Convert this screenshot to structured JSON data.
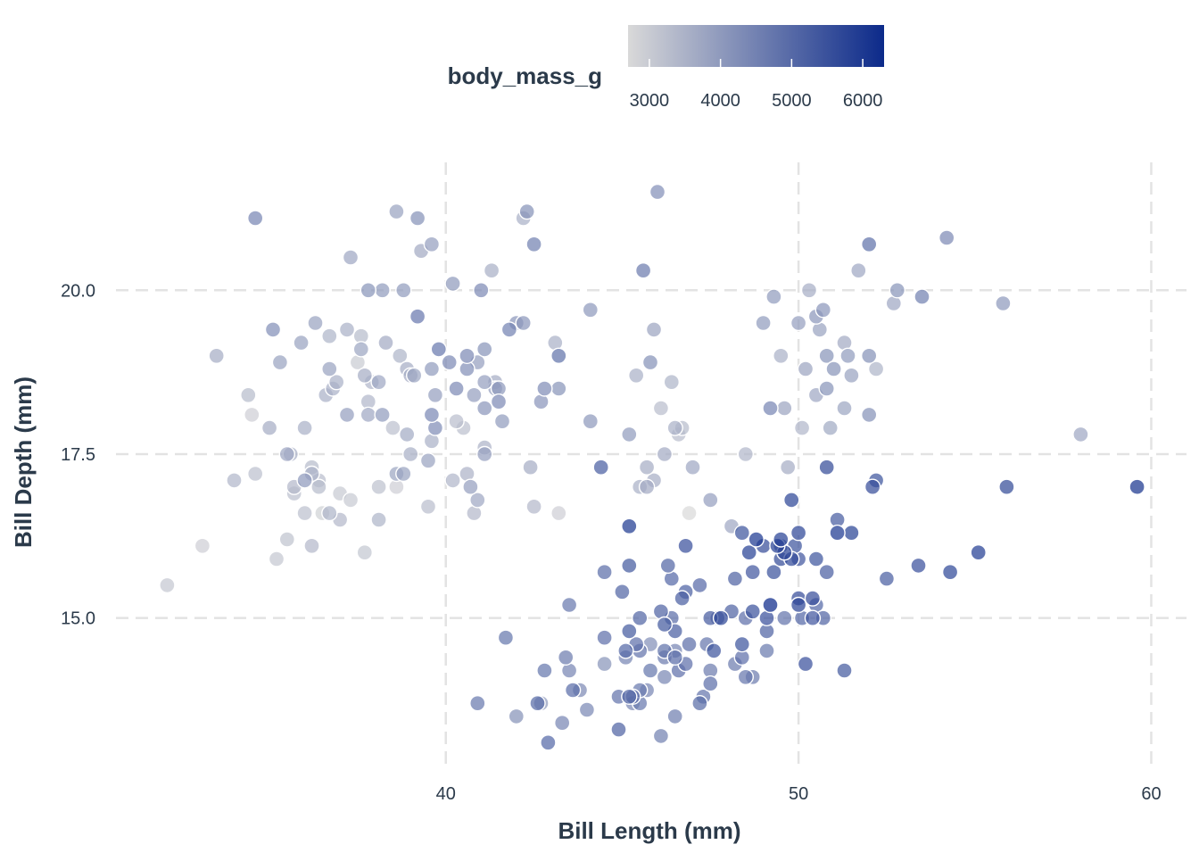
{
  "chart_data": {
    "type": "scatter",
    "xlabel": "Bill Length (mm)",
    "ylabel": "Bill Depth (mm)",
    "xlim": [
      30.8,
      61.0
    ],
    "ylim": [
      12.75,
      21.95
    ],
    "x_ticks": [
      40,
      50,
      60
    ],
    "x_tick_labels": [
      "40",
      "50",
      "60"
    ],
    "y_ticks": [
      15,
      17.5,
      20
    ],
    "y_tick_labels": [
      "15.0",
      "17.5",
      "20.0"
    ],
    "grid": true,
    "legend": {
      "title": "body_mass_g",
      "placement": "top",
      "type": "colorbar",
      "range": [
        2700,
        6300
      ],
      "ticks": [
        3000,
        4000,
        5000,
        6000
      ],
      "tick_labels": [
        "3000",
        "4000",
        "5000",
        "6000"
      ],
      "color_low": "#d9d9d9",
      "color_high": "#0c2a8a"
    },
    "colors": {
      "low": "#d9d9d9",
      "high": "#0c2a8a",
      "grid": "#e3e3e3",
      "text": "#2b3a4a"
    },
    "points": [
      [
        32.1,
        15.5,
        3050
      ],
      [
        33.1,
        16.1,
        2900
      ],
      [
        33.5,
        19.0,
        3600
      ],
      [
        34.0,
        17.1,
        3400
      ],
      [
        34.4,
        18.4,
        3300
      ],
      [
        34.5,
        18.1,
        2900
      ],
      [
        34.6,
        21.1,
        4400
      ],
      [
        34.6,
        17.2,
        3200
      ],
      [
        35.0,
        17.9,
        3600
      ],
      [
        35.1,
        19.4,
        4200
      ],
      [
        35.2,
        15.9,
        3050
      ],
      [
        35.3,
        18.9,
        3800
      ],
      [
        35.5,
        16.2,
        3150
      ],
      [
        35.5,
        17.5,
        3700
      ],
      [
        35.6,
        17.5,
        3500
      ],
      [
        35.7,
        16.9,
        3200
      ],
      [
        35.7,
        17.0,
        3350
      ],
      [
        35.9,
        19.2,
        3800
      ],
      [
        36.0,
        16.6,
        3200
      ],
      [
        36.0,
        17.1,
        4000
      ],
      [
        36.0,
        17.9,
        3500
      ],
      [
        36.2,
        17.3,
        3300
      ],
      [
        36.2,
        17.2,
        3500
      ],
      [
        36.2,
        16.1,
        3350
      ],
      [
        36.3,
        19.5,
        3800
      ],
      [
        36.4,
        17.0,
        3300
      ],
      [
        36.4,
        17.1,
        3250
      ],
      [
        36.5,
        16.6,
        2850
      ],
      [
        36.6,
        18.4,
        3500
      ],
      [
        36.7,
        19.3,
        3450
      ],
      [
        36.7,
        18.8,
        3800
      ],
      [
        36.7,
        16.6,
        3450
      ],
      [
        36.8,
        18.5,
        3500
      ],
      [
        36.9,
        18.6,
        3500
      ],
      [
        37.0,
        16.9,
        3000
      ],
      [
        37.0,
        16.5,
        3350
      ],
      [
        37.2,
        18.1,
        3900
      ],
      [
        37.2,
        19.4,
        3500
      ],
      [
        37.3,
        20.5,
        3700
      ],
      [
        37.3,
        16.8,
        3000
      ],
      [
        37.5,
        18.9,
        2975
      ],
      [
        37.6,
        19.3,
        3300
      ],
      [
        37.6,
        19.1,
        3750
      ],
      [
        37.7,
        18.7,
        3600
      ],
      [
        37.7,
        16.0,
        3075
      ],
      [
        37.8,
        18.3,
        3400
      ],
      [
        37.8,
        20.0,
        4100
      ],
      [
        37.8,
        18.1,
        3700
      ],
      [
        37.9,
        18.6,
        3400
      ],
      [
        38.1,
        17.0,
        3175
      ],
      [
        38.1,
        18.6,
        3700
      ],
      [
        38.1,
        16.5,
        3450
      ],
      [
        38.2,
        18.1,
        3950
      ],
      [
        38.2,
        20.0,
        3950
      ],
      [
        38.3,
        19.2,
        3650
      ],
      [
        38.5,
        17.9,
        3200
      ],
      [
        38.6,
        21.2,
        3800
      ],
      [
        38.6,
        17.2,
        3750
      ],
      [
        38.6,
        17.0,
        2900
      ],
      [
        38.7,
        19.0,
        3450
      ],
      [
        38.8,
        17.2,
        3800
      ],
      [
        38.8,
        20.0,
        3950
      ],
      [
        38.9,
        17.8,
        3625
      ],
      [
        38.9,
        18.8,
        3600
      ],
      [
        39.0,
        17.5,
        3550
      ],
      [
        39.0,
        18.7,
        3650
      ],
      [
        39.1,
        18.7,
        3750
      ],
      [
        39.2,
        19.6,
        4675
      ],
      [
        39.2,
        21.1,
        4150
      ],
      [
        39.3,
        20.6,
        3650
      ],
      [
        39.5,
        17.4,
        3800
      ],
      [
        39.5,
        16.7,
        3250
      ],
      [
        39.6,
        20.7,
        3900
      ],
      [
        39.6,
        17.7,
        3500
      ],
      [
        39.6,
        18.1,
        4350
      ],
      [
        39.6,
        18.8,
        3950
      ],
      [
        39.7,
        17.9,
        4250
      ],
      [
        39.7,
        18.4,
        3900
      ],
      [
        39.8,
        19.1,
        4650
      ],
      [
        40.1,
        18.9,
        4300
      ],
      [
        40.2,
        20.1,
        3975
      ],
      [
        40.2,
        17.1,
        3400
      ],
      [
        40.3,
        18.5,
        4300
      ],
      [
        40.3,
        18.0,
        3250
      ],
      [
        40.5,
        17.9,
        3200
      ],
      [
        40.6,
        19.0,
        4300
      ],
      [
        40.6,
        18.8,
        4200
      ],
      [
        40.6,
        17.2,
        3475
      ],
      [
        40.7,
        17.0,
        3900
      ],
      [
        40.8,
        18.4,
        3900
      ],
      [
        40.8,
        16.6,
        3350
      ],
      [
        40.9,
        18.9,
        3900
      ],
      [
        40.9,
        16.8,
        3700
      ],
      [
        41.0,
        20.0,
        4300
      ],
      [
        41.1,
        19.1,
        4100
      ],
      [
        41.1,
        18.6,
        3900
      ],
      [
        41.1,
        17.5,
        3900
      ],
      [
        41.1,
        18.2,
        4050
      ],
      [
        41.1,
        17.6,
        3475
      ],
      [
        41.3,
        20.3,
        3550
      ],
      [
        41.4,
        18.6,
        3600
      ],
      [
        41.4,
        18.5,
        3875
      ],
      [
        41.5,
        18.3,
        4300
      ],
      [
        41.5,
        18.5,
        4000
      ],
      [
        41.6,
        18.0,
        3950
      ],
      [
        41.8,
        19.4,
        4450
      ],
      [
        42.0,
        19.5,
        4050
      ],
      [
        42.2,
        19.5,
        4050
      ],
      [
        42.2,
        21.1,
        3500
      ],
      [
        42.3,
        21.2,
        4150
      ],
      [
        42.5,
        20.7,
        4500
      ],
      [
        42.7,
        18.3,
        4075
      ],
      [
        42.8,
        18.5,
        4250
      ],
      [
        43.1,
        19.2,
        3500
      ],
      [
        43.2,
        19.0,
        4775
      ],
      [
        43.2,
        18.5,
        4100
      ],
      [
        44.1,
        19.7,
        4000
      ],
      [
        44.1,
        18.0,
        4000
      ],
      [
        45.8,
        18.9,
        4150
      ],
      [
        45.6,
        20.3,
        4600
      ],
      [
        45.7,
        17.3,
        3600
      ],
      [
        46.0,
        21.5,
        4200
      ],
      [
        46.1,
        18.2,
        3250
      ],
      [
        46.2,
        17.5,
        3650
      ],
      [
        46.4,
        18.6,
        3450
      ],
      [
        46.5,
        17.9,
        3500
      ],
      [
        46.6,
        17.8,
        3250
      ],
      [
        46.7,
        17.9,
        3300
      ],
      [
        45.2,
        17.8,
        3950
      ],
      [
        45.4,
        18.7,
        3525
      ],
      [
        45.5,
        17.0,
        3500
      ],
      [
        45.7,
        17.0,
        3650
      ],
      [
        45.9,
        17.1,
        3575
      ],
      [
        45.9,
        19.4,
        3775
      ],
      [
        46.9,
        16.6,
        2700
      ],
      [
        47.0,
        17.3,
        3700
      ],
      [
        47.5,
        16.8,
        3900
      ],
      [
        48.1,
        16.4,
        3725
      ],
      [
        48.5,
        17.5,
        3400
      ],
      [
        49.0,
        19.5,
        3950
      ],
      [
        49.2,
        18.2,
        4400
      ],
      [
        49.3,
        19.9,
        3950
      ],
      [
        49.5,
        19.0,
        3500
      ],
      [
        49.6,
        18.2,
        3775
      ],
      [
        49.7,
        17.3,
        3600
      ],
      [
        50.0,
        19.5,
        3900
      ],
      [
        50.1,
        17.9,
        3400
      ],
      [
        50.2,
        18.8,
        3775
      ],
      [
        50.3,
        20.0,
        3575
      ],
      [
        50.5,
        18.4,
        3700
      ],
      [
        50.6,
        19.4,
        3800
      ],
      [
        50.5,
        19.6,
        4050
      ],
      [
        50.7,
        19.7,
        4050
      ],
      [
        50.8,
        18.5,
        4100
      ],
      [
        50.8,
        19.0,
        4100
      ],
      [
        50.9,
        17.9,
        3675
      ],
      [
        51.0,
        18.8,
        4100
      ],
      [
        51.3,
        18.2,
        3750
      ],
      [
        51.3,
        19.2,
        3650
      ],
      [
        51.4,
        19.0,
        3950
      ],
      [
        51.5,
        18.7,
        3800
      ],
      [
        51.7,
        20.3,
        3700
      ],
      [
        52.0,
        18.1,
        4150
      ],
      [
        52.0,
        19.0,
        4150
      ],
      [
        52.0,
        20.7,
        4800
      ],
      [
        52.2,
        18.8,
        3450
      ],
      [
        52.7,
        19.8,
        3725
      ],
      [
        52.8,
        20.0,
        4100
      ],
      [
        53.5,
        19.9,
        4500
      ],
      [
        54.2,
        20.8,
        4300
      ],
      [
        55.8,
        19.8,
        4000
      ],
      [
        58.0,
        17.8,
        3700
      ],
      [
        42.4,
        17.3,
        3600
      ],
      [
        42.5,
        16.7,
        3350
      ],
      [
        43.2,
        16.6,
        2900
      ],
      [
        42.9,
        13.1,
        5000
      ],
      [
        42.8,
        14.2,
        4700
      ],
      [
        42.7,
        13.7,
        3950
      ],
      [
        42.6,
        13.7,
        4950
      ],
      [
        43.3,
        13.4,
        4400
      ],
      [
        43.4,
        14.4,
        4600
      ],
      [
        43.5,
        14.2,
        4400
      ],
      [
        43.5,
        15.2,
        4650
      ],
      [
        43.6,
        13.9,
        4900
      ],
      [
        43.8,
        13.9,
        4300
      ],
      [
        44.0,
        13.6,
        4350
      ],
      [
        44.4,
        17.3,
        5200
      ],
      [
        44.5,
        14.3,
        4100
      ],
      [
        44.5,
        14.7,
        4850
      ],
      [
        44.5,
        15.7,
        4875
      ],
      [
        44.9,
        13.3,
        5100
      ],
      [
        44.9,
        13.8,
        4750
      ],
      [
        45.0,
        15.4,
        5050
      ],
      [
        45.1,
        14.5,
        5000
      ],
      [
        45.1,
        14.4,
        4400
      ],
      [
        45.2,
        13.8,
        5050
      ],
      [
        45.2,
        14.8,
        5300
      ],
      [
        45.2,
        15.8,
        5300
      ],
      [
        45.2,
        16.4,
        5950
      ],
      [
        45.3,
        13.7,
        4300
      ],
      [
        45.3,
        13.8,
        4850
      ],
      [
        45.4,
        14.6,
        4850
      ],
      [
        45.5,
        13.7,
        4650
      ],
      [
        45.5,
        13.9,
        4650
      ],
      [
        45.5,
        14.5,
        4750
      ],
      [
        45.5,
        15.0,
        5050
      ],
      [
        45.7,
        13.9,
        4400
      ],
      [
        45.8,
        14.2,
        4700
      ],
      [
        45.8,
        14.6,
        4200
      ],
      [
        46.1,
        13.2,
        4500
      ],
      [
        46.1,
        15.1,
        5100
      ],
      [
        46.2,
        14.1,
        4375
      ],
      [
        46.2,
        14.4,
        4600
      ],
      [
        46.2,
        14.5,
        4800
      ],
      [
        46.2,
        14.9,
        5300
      ],
      [
        46.3,
        15.8,
        5050
      ],
      [
        46.4,
        15.0,
        4875
      ],
      [
        46.4,
        15.6,
        5000
      ],
      [
        46.5,
        13.5,
        4550
      ],
      [
        46.5,
        14.4,
        4900
      ],
      [
        46.5,
        14.5,
        4400
      ],
      [
        46.5,
        14.8,
        5200
      ],
      [
        46.6,
        14.2,
        4850
      ],
      [
        46.7,
        15.3,
        5200
      ],
      [
        46.8,
        14.3,
        4850
      ],
      [
        46.8,
        15.4,
        5150
      ],
      [
        46.8,
        16.1,
        5500
      ],
      [
        46.9,
        14.6,
        4875
      ],
      [
        47.2,
        13.7,
        4925
      ],
      [
        47.2,
        15.5,
        4975
      ],
      [
        47.3,
        13.8,
        4725
      ],
      [
        47.4,
        14.6,
        4725
      ],
      [
        47.5,
        14.0,
        4875
      ],
      [
        47.5,
        14.2,
        4600
      ],
      [
        47.5,
        15.0,
        5250
      ],
      [
        47.6,
        14.5,
        5400
      ],
      [
        47.7,
        15.0,
        4750
      ],
      [
        47.8,
        15.0,
        5650
      ],
      [
        48.1,
        15.1,
        5100
      ],
      [
        48.2,
        14.3,
        4600
      ],
      [
        48.2,
        15.6,
        5100
      ],
      [
        48.4,
        14.4,
        4850
      ],
      [
        48.4,
        14.6,
        5400
      ],
      [
        48.4,
        16.3,
        5400
      ],
      [
        48.5,
        14.1,
        4725
      ],
      [
        48.5,
        15.0,
        4850
      ],
      [
        48.6,
        16.0,
        5800
      ],
      [
        48.7,
        14.1,
        4600
      ],
      [
        48.7,
        15.1,
        5450
      ],
      [
        48.7,
        15.7,
        5350
      ],
      [
        48.8,
        16.2,
        6000
      ],
      [
        49.0,
        16.1,
        5550
      ],
      [
        49.1,
        14.5,
        4625
      ],
      [
        49.1,
        14.8,
        5100
      ],
      [
        49.1,
        15.0,
        5500
      ],
      [
        49.2,
        15.2,
        6300
      ],
      [
        49.3,
        15.7,
        5450
      ],
      [
        49.4,
        16.1,
        5800
      ],
      [
        49.5,
        15.9,
        5600
      ],
      [
        49.5,
        16.1,
        5150
      ],
      [
        49.5,
        16.2,
        5800
      ],
      [
        49.6,
        15.0,
        4750
      ],
      [
        49.6,
        16.0,
        5700
      ],
      [
        49.8,
        15.9,
        5650
      ],
      [
        49.8,
        16.8,
        5700
      ],
      [
        49.9,
        16.1,
        5400
      ],
      [
        50.0,
        15.2,
        5700
      ],
      [
        50.0,
        15.3,
        5550
      ],
      [
        50.0,
        15.9,
        5350
      ],
      [
        50.0,
        16.3,
        5700
      ],
      [
        50.1,
        15.0,
        5000
      ],
      [
        50.2,
        14.3,
        5500
      ],
      [
        50.4,
        15.0,
        5350
      ],
      [
        50.4,
        15.3,
        5550
      ],
      [
        50.5,
        15.2,
        5000
      ],
      [
        50.5,
        15.9,
        5400
      ],
      [
        50.7,
        15.0,
        5050
      ],
      [
        50.8,
        15.7,
        5200
      ],
      [
        50.8,
        17.3,
        5600
      ],
      [
        51.1,
        16.3,
        6000
      ],
      [
        51.1,
        16.5,
        5250
      ],
      [
        51.3,
        14.2,
        5300
      ],
      [
        51.5,
        16.3,
        5750
      ],
      [
        52.1,
        17.0,
        5550
      ],
      [
        52.2,
        17.1,
        5400
      ],
      [
        52.5,
        15.6,
        5200
      ],
      [
        53.4,
        15.8,
        5500
      ],
      [
        54.3,
        15.7,
        5650
      ],
      [
        55.1,
        16.0,
        5850
      ],
      [
        55.9,
        17.0,
        5600
      ],
      [
        59.6,
        17.0,
        6050
      ],
      [
        40.9,
        13.7,
        4650
      ],
      [
        41.7,
        14.7,
        4700
      ],
      [
        42.0,
        13.5,
        4150
      ]
    ]
  }
}
